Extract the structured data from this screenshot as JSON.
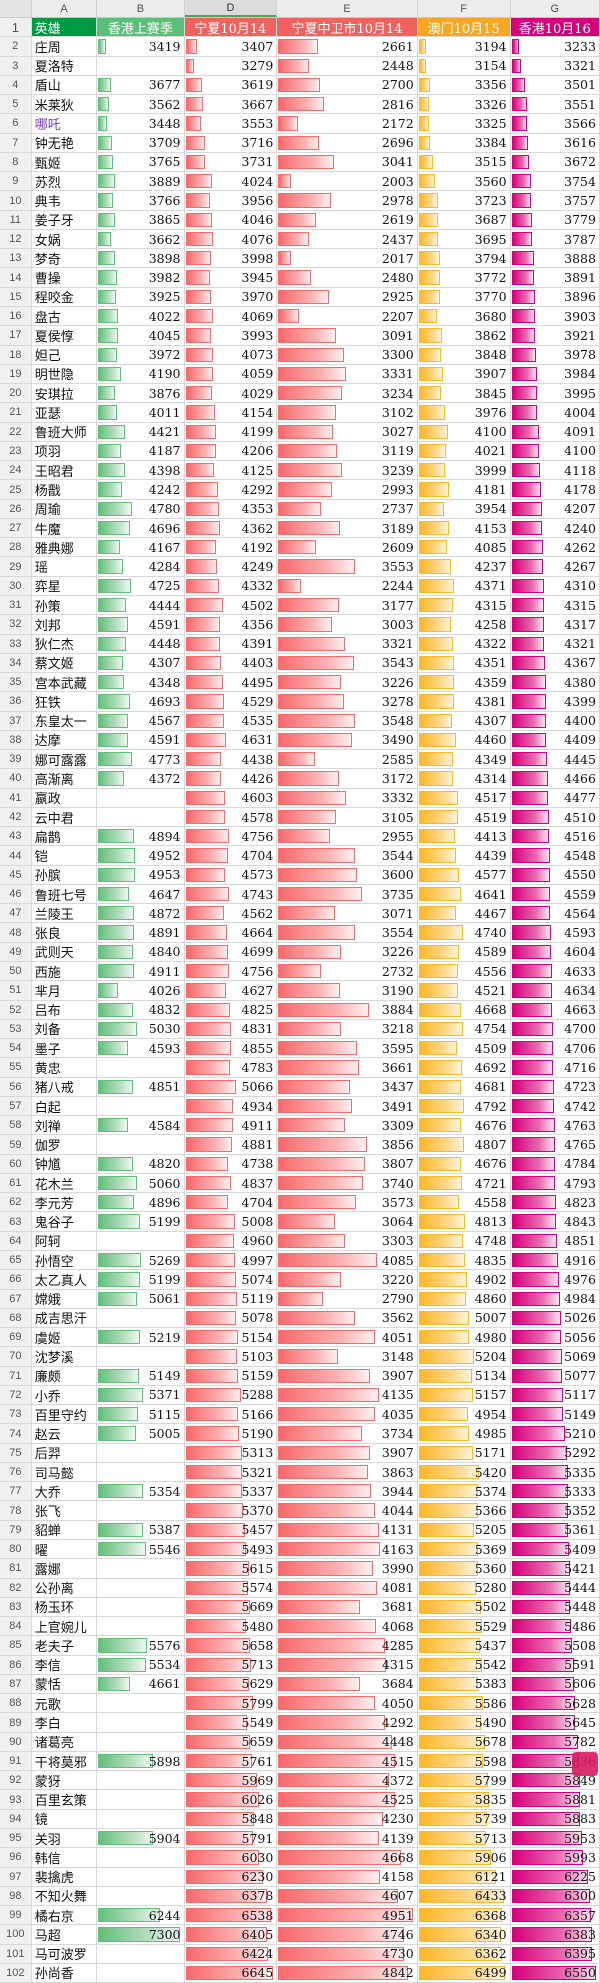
{
  "spreadsheet": {
    "column_letters": [
      "A",
      "B",
      "D",
      "E",
      "F",
      "G"
    ],
    "headers": {
      "row_number": "1",
      "hero": "英雄",
      "hk_last_season": "香港上赛季",
      "ningxia_1014": "宁夏10月14",
      "ningxia_zhongwei_1014": "宁夏中卫市10月14",
      "macau_1015": "澳门10月15",
      "hk_1016": "香港10月16"
    },
    "header_colors": {
      "hero": "#009a44",
      "hk_last_season": "#5bbf7a",
      "ningxia_1014": "#f0625d",
      "ningxia_zhongwei_1014": "#f0625d",
      "macau_1015": "#f5a623",
      "hk_1016": "#d6007b"
    },
    "bar_colors": {
      "green": "#63be7b",
      "red": "#f8696b",
      "orange": "#ffb628",
      "magenta": "#d6007b"
    },
    "rows": [
      {
        "n": "2",
        "hero": "庄周",
        "b": "3419",
        "d": "3407",
        "e": "2661",
        "f": "3194",
        "g": "3233"
      },
      {
        "n": "3",
        "hero": "夏洛特",
        "b": "",
        "d": "3279",
        "e": "2448",
        "f": "3154",
        "g": "3321"
      },
      {
        "n": "4",
        "hero": "盾山",
        "b": "3677",
        "d": "3619",
        "e": "2700",
        "f": "3356",
        "g": "3501"
      },
      {
        "n": "5",
        "hero": "米莱狄",
        "b": "3562",
        "d": "3667",
        "e": "2816",
        "f": "3326",
        "g": "3551"
      },
      {
        "n": "6",
        "hero": "哪吒",
        "b": "3448",
        "d": "3553",
        "e": "2172",
        "f": "3325",
        "g": "3566",
        "highlight": true
      },
      {
        "n": "7",
        "hero": "钟无艳",
        "b": "3709",
        "d": "3716",
        "e": "2696",
        "f": "3384",
        "g": "3616"
      },
      {
        "n": "8",
        "hero": "甄姬",
        "b": "3765",
        "d": "3731",
        "e": "3041",
        "f": "3515",
        "g": "3672"
      },
      {
        "n": "9",
        "hero": "苏烈",
        "b": "3889",
        "d": "4024",
        "e": "2003",
        "f": "3560",
        "g": "3754"
      },
      {
        "n": "10",
        "hero": "典韦",
        "b": "3766",
        "d": "3956",
        "e": "2978",
        "f": "3723",
        "g": "3757"
      },
      {
        "n": "11",
        "hero": "姜子牙",
        "b": "3865",
        "d": "4046",
        "e": "2619",
        "f": "3687",
        "g": "3779"
      },
      {
        "n": "12",
        "hero": "女娲",
        "b": "3662",
        "d": "4076",
        "e": "2437",
        "f": "3695",
        "g": "3787"
      },
      {
        "n": "13",
        "hero": "梦奇",
        "b": "3898",
        "d": "3998",
        "e": "2017",
        "f": "3794",
        "g": "3888"
      },
      {
        "n": "14",
        "hero": "曹操",
        "b": "3982",
        "d": "3945",
        "e": "2480",
        "f": "3772",
        "g": "3891"
      },
      {
        "n": "15",
        "hero": "程咬金",
        "b": "3925",
        "d": "3970",
        "e": "2925",
        "f": "3770",
        "g": "3896"
      },
      {
        "n": "16",
        "hero": "盘古",
        "b": "4022",
        "d": "4069",
        "e": "2207",
        "f": "3680",
        "g": "3903"
      },
      {
        "n": "17",
        "hero": "夏侯惇",
        "b": "4045",
        "d": "3993",
        "e": "3091",
        "f": "3862",
        "g": "3921"
      },
      {
        "n": "18",
        "hero": "妲己",
        "b": "3972",
        "d": "4073",
        "e": "3300",
        "f": "3848",
        "g": "3978"
      },
      {
        "n": "19",
        "hero": "明世隐",
        "b": "4190",
        "d": "4059",
        "e": "3331",
        "f": "3907",
        "g": "3984"
      },
      {
        "n": "20",
        "hero": "安琪拉",
        "b": "3876",
        "d": "4029",
        "e": "3234",
        "f": "3845",
        "g": "3995"
      },
      {
        "n": "21",
        "hero": "亚瑟",
        "b": "4011",
        "d": "4154",
        "e": "3102",
        "f": "3976",
        "g": "4004"
      },
      {
        "n": "22",
        "hero": "鲁班大师",
        "b": "4421",
        "d": "4199",
        "e": "3027",
        "f": "4100",
        "g": "4091"
      },
      {
        "n": "23",
        "hero": "项羽",
        "b": "4187",
        "d": "4206",
        "e": "3119",
        "f": "4021",
        "g": "4100"
      },
      {
        "n": "24",
        "hero": "王昭君",
        "b": "4398",
        "d": "4125",
        "e": "3239",
        "f": "3999",
        "g": "4118"
      },
      {
        "n": "25",
        "hero": "杨戬",
        "b": "4242",
        "d": "4292",
        "e": "2993",
        "f": "4181",
        "g": "4178"
      },
      {
        "n": "26",
        "hero": "周瑜",
        "b": "4780",
        "d": "4353",
        "e": "2737",
        "f": "3954",
        "g": "4207"
      },
      {
        "n": "27",
        "hero": "牛魔",
        "b": "4696",
        "d": "4362",
        "e": "3189",
        "f": "4153",
        "g": "4240"
      },
      {
        "n": "28",
        "hero": "雅典娜",
        "b": "4167",
        "d": "4192",
        "e": "2609",
        "f": "4085",
        "g": "4262"
      },
      {
        "n": "29",
        "hero": "瑶",
        "b": "4284",
        "d": "4249",
        "e": "3553",
        "f": "4237",
        "g": "4267"
      },
      {
        "n": "30",
        "hero": "弈星",
        "b": "4725",
        "d": "4332",
        "e": "2244",
        "f": "4371",
        "g": "4310"
      },
      {
        "n": "31",
        "hero": "孙策",
        "b": "4444",
        "d": "4502",
        "e": "3177",
        "f": "4315",
        "g": "4315"
      },
      {
        "n": "32",
        "hero": "刘邦",
        "b": "4591",
        "d": "4356",
        "e": "3003",
        "f": "4258",
        "g": "4317"
      },
      {
        "n": "33",
        "hero": "狄仁杰",
        "b": "4448",
        "d": "4391",
        "e": "3321",
        "f": "4322",
        "g": "4321"
      },
      {
        "n": "34",
        "hero": "蔡文姬",
        "b": "4307",
        "d": "4403",
        "e": "3543",
        "f": "4351",
        "g": "4367"
      },
      {
        "n": "35",
        "hero": "宫本武藏",
        "b": "4348",
        "d": "4495",
        "e": "3226",
        "f": "4359",
        "g": "4380"
      },
      {
        "n": "36",
        "hero": "狂铁",
        "b": "4693",
        "d": "4529",
        "e": "3278",
        "f": "4381",
        "g": "4399"
      },
      {
        "n": "37",
        "hero": "东皇太一",
        "b": "4567",
        "d": "4535",
        "e": "3548",
        "f": "4307",
        "g": "4400"
      },
      {
        "n": "38",
        "hero": "达摩",
        "b": "4591",
        "d": "4631",
        "e": "3490",
        "f": "4460",
        "g": "4409"
      },
      {
        "n": "39",
        "hero": "娜可露露",
        "b": "4773",
        "d": "4438",
        "e": "2585",
        "f": "4349",
        "g": "4445"
      },
      {
        "n": "40",
        "hero": "高渐离",
        "b": "4372",
        "d": "4426",
        "e": "3172",
        "f": "4314",
        "g": "4466"
      },
      {
        "n": "41",
        "hero": "嬴政",
        "b": "",
        "d": "4603",
        "e": "3332",
        "f": "4517",
        "g": "4477"
      },
      {
        "n": "42",
        "hero": "云中君",
        "b": "",
        "d": "4578",
        "e": "3105",
        "f": "4519",
        "g": "4510"
      },
      {
        "n": "43",
        "hero": "扁鹊",
        "b": "4894",
        "d": "4756",
        "e": "2955",
        "f": "4413",
        "g": "4516"
      },
      {
        "n": "44",
        "hero": "铠",
        "b": "4952",
        "d": "4704",
        "e": "3544",
        "f": "4439",
        "g": "4548"
      },
      {
        "n": "45",
        "hero": "孙膑",
        "b": "4953",
        "d": "4573",
        "e": "3600",
        "f": "4577",
        "g": "4550"
      },
      {
        "n": "46",
        "hero": "鲁班七号",
        "b": "4647",
        "d": "4743",
        "e": "3735",
        "f": "4641",
        "g": "4559"
      },
      {
        "n": "47",
        "hero": "兰陵王",
        "b": "4872",
        "d": "4562",
        "e": "3071",
        "f": "4467",
        "g": "4564"
      },
      {
        "n": "48",
        "hero": "张良",
        "b": "4891",
        "d": "4664",
        "e": "3554",
        "f": "4740",
        "g": "4593"
      },
      {
        "n": "49",
        "hero": "武则天",
        "b": "4840",
        "d": "4699",
        "e": "3226",
        "f": "4589",
        "g": "4604"
      },
      {
        "n": "50",
        "hero": "西施",
        "b": "4911",
        "d": "4756",
        "e": "2732",
        "f": "4556",
        "g": "4633"
      },
      {
        "n": "51",
        "hero": "芈月",
        "b": "4026",
        "d": "4627",
        "e": "3190",
        "f": "4521",
        "g": "4634"
      },
      {
        "n": "52",
        "hero": "吕布",
        "b": "4832",
        "d": "4825",
        "e": "3884",
        "f": "4668",
        "g": "4663"
      },
      {
        "n": "53",
        "hero": "刘备",
        "b": "5030",
        "d": "4831",
        "e": "3218",
        "f": "4754",
        "g": "4700"
      },
      {
        "n": "54",
        "hero": "墨子",
        "b": "4593",
        "d": "4855",
        "e": "3595",
        "f": "4509",
        "g": "4706"
      },
      {
        "n": "55",
        "hero": "黄忠",
        "b": "",
        "d": "4783",
        "e": "3661",
        "f": "4692",
        "g": "4716"
      },
      {
        "n": "56",
        "hero": "猪八戒",
        "b": "4851",
        "d": "5066",
        "e": "3437",
        "f": "4681",
        "g": "4723"
      },
      {
        "n": "57",
        "hero": "白起",
        "b": "",
        "d": "4934",
        "e": "3491",
        "f": "4792",
        "g": "4742"
      },
      {
        "n": "58",
        "hero": "刘禅",
        "b": "4584",
        "d": "4911",
        "e": "3309",
        "f": "4676",
        "g": "4763"
      },
      {
        "n": "59",
        "hero": "伽罗",
        "b": "",
        "d": "4881",
        "e": "3856",
        "f": "4807",
        "g": "4765"
      },
      {
        "n": "60",
        "hero": "钟馗",
        "b": "4820",
        "d": "4738",
        "e": "3807",
        "f": "4676",
        "g": "4784"
      },
      {
        "n": "61",
        "hero": "花木兰",
        "b": "5060",
        "d": "4837",
        "e": "3740",
        "f": "4721",
        "g": "4793"
      },
      {
        "n": "62",
        "hero": "李元芳",
        "b": "4896",
        "d": "4704",
        "e": "3573",
        "f": "4558",
        "g": "4823"
      },
      {
        "n": "63",
        "hero": "鬼谷子",
        "b": "5199",
        "d": "5008",
        "e": "3064",
        "f": "4813",
        "g": "4843"
      },
      {
        "n": "64",
        "hero": "阿轲",
        "b": "",
        "d": "4960",
        "e": "3303",
        "f": "4748",
        "g": "4851"
      },
      {
        "n": "65",
        "hero": "孙悟空",
        "b": "5269",
        "d": "4997",
        "e": "4085",
        "f": "4835",
        "g": "4916"
      },
      {
        "n": "66",
        "hero": "太乙真人",
        "b": "5199",
        "d": "5074",
        "e": "3220",
        "f": "4902",
        "g": "4976"
      },
      {
        "n": "67",
        "hero": "嫦娥",
        "b": "5061",
        "d": "5119",
        "e": "2790",
        "f": "4860",
        "g": "4984"
      },
      {
        "n": "68",
        "hero": "成吉思汗",
        "b": "",
        "d": "5078",
        "e": "3562",
        "f": "5007",
        "g": "5026"
      },
      {
        "n": "69",
        "hero": "虞姬",
        "b": "5219",
        "d": "5154",
        "e": "4051",
        "f": "4980",
        "g": "5056"
      },
      {
        "n": "70",
        "hero": "沈梦溪",
        "b": "",
        "d": "5103",
        "e": "3148",
        "f": "5204",
        "g": "5069"
      },
      {
        "n": "71",
        "hero": "廉颇",
        "b": "5149",
        "d": "5159",
        "e": "3907",
        "f": "5134",
        "g": "5077"
      },
      {
        "n": "72",
        "hero": "小乔",
        "b": "5371",
        "d": "5288",
        "e": "4135",
        "f": "5157",
        "g": "5117"
      },
      {
        "n": "73",
        "hero": "百里守约",
        "b": "5115",
        "d": "5166",
        "e": "4035",
        "f": "4954",
        "g": "5149"
      },
      {
        "n": "74",
        "hero": "赵云",
        "b": "5005",
        "d": "5190",
        "e": "3734",
        "f": "4985",
        "g": "5210"
      },
      {
        "n": "75",
        "hero": "后羿",
        "b": "",
        "d": "5313",
        "e": "3907",
        "f": "5171",
        "g": "5292"
      },
      {
        "n": "76",
        "hero": "司马懿",
        "b": "",
        "d": "5321",
        "e": "3863",
        "f": "5420",
        "g": "5335"
      },
      {
        "n": "77",
        "hero": "大乔",
        "b": "5354",
        "d": "5337",
        "e": "3944",
        "f": "5374",
        "g": "5333"
      },
      {
        "n": "78",
        "hero": "张飞",
        "b": "",
        "d": "5370",
        "e": "4044",
        "f": "5366",
        "g": "5352"
      },
      {
        "n": "79",
        "hero": "貂蝉",
        "b": "5387",
        "d": "5457",
        "e": "4131",
        "f": "5205",
        "g": "5361"
      },
      {
        "n": "80",
        "hero": "曜",
        "b": "5546",
        "d": "5493",
        "e": "4163",
        "f": "5369",
        "g": "5409"
      },
      {
        "n": "81",
        "hero": "露娜",
        "b": "",
        "d": "5615",
        "e": "3990",
        "f": "5360",
        "g": "5421"
      },
      {
        "n": "82",
        "hero": "公孙离",
        "b": "",
        "d": "5574",
        "e": "4081",
        "f": "5280",
        "g": "5444"
      },
      {
        "n": "83",
        "hero": "杨玉环",
        "b": "",
        "d": "5669",
        "e": "3681",
        "f": "5502",
        "g": "5448"
      },
      {
        "n": "84",
        "hero": "上官婉儿",
        "b": "",
        "d": "5480",
        "e": "4068",
        "f": "5529",
        "g": "5486"
      },
      {
        "n": "85",
        "hero": "老夫子",
        "b": "5576",
        "d": "5658",
        "e": "4285",
        "f": "5437",
        "g": "5508"
      },
      {
        "n": "86",
        "hero": "李信",
        "b": "5534",
        "d": "5713",
        "e": "4315",
        "f": "5542",
        "g": "5591"
      },
      {
        "n": "87",
        "hero": "蒙恬",
        "b": "4661",
        "d": "5629",
        "e": "3684",
        "f": "5383",
        "g": "5606"
      },
      {
        "n": "88",
        "hero": "元歌",
        "b": "",
        "d": "5799",
        "e": "4050",
        "f": "5586",
        "g": "5628"
      },
      {
        "n": "89",
        "hero": "李白",
        "b": "",
        "d": "5549",
        "e": "4292",
        "f": "5490",
        "g": "5645"
      },
      {
        "n": "90",
        "hero": "诸葛亮",
        "b": "",
        "d": "5659",
        "e": "4448",
        "f": "5678",
        "g": "5782"
      },
      {
        "n": "91",
        "hero": "干将莫邪",
        "b": "5898",
        "d": "5761",
        "e": "4515",
        "f": "5598",
        "g": "5836"
      },
      {
        "n": "92",
        "hero": "蒙犽",
        "b": "",
        "d": "5969",
        "e": "4372",
        "f": "5799",
        "g": "5849"
      },
      {
        "n": "93",
        "hero": "百里玄策",
        "b": "",
        "d": "6026",
        "e": "4525",
        "f": "5835",
        "g": "5881"
      },
      {
        "n": "94",
        "hero": "镜",
        "b": "",
        "d": "5848",
        "e": "4230",
        "f": "5739",
        "g": "5883"
      },
      {
        "n": "95",
        "hero": "关羽",
        "b": "5904",
        "d": "5791",
        "e": "4139",
        "f": "5713",
        "g": "5953"
      },
      {
        "n": "96",
        "hero": "韩信",
        "b": "",
        "d": "6030",
        "e": "4668",
        "f": "5906",
        "g": "5993"
      },
      {
        "n": "97",
        "hero": "裴擒虎",
        "b": "",
        "d": "6230",
        "e": "4158",
        "f": "6121",
        "g": "6225"
      },
      {
        "n": "98",
        "hero": "不知火舞",
        "b": "",
        "d": "6378",
        "e": "4607",
        "f": "6433",
        "g": "6300"
      },
      {
        "n": "99",
        "hero": "橘右京",
        "b": "6244",
        "d": "6538",
        "e": "4951",
        "f": "6368",
        "g": "6357"
      },
      {
        "n": "100",
        "hero": "马超",
        "b": "7300",
        "d": "6405",
        "e": "4746",
        "f": "6340",
        "g": "6383"
      },
      {
        "n": "101",
        "hero": "马可波罗",
        "b": "",
        "d": "6424",
        "e": "4730",
        "f": "6362",
        "g": "6395"
      },
      {
        "n": "102",
        "hero": "孙尚香",
        "b": "",
        "d": "6645",
        "e": "4842",
        "f": "6499",
        "g": "6550"
      }
    ]
  }
}
